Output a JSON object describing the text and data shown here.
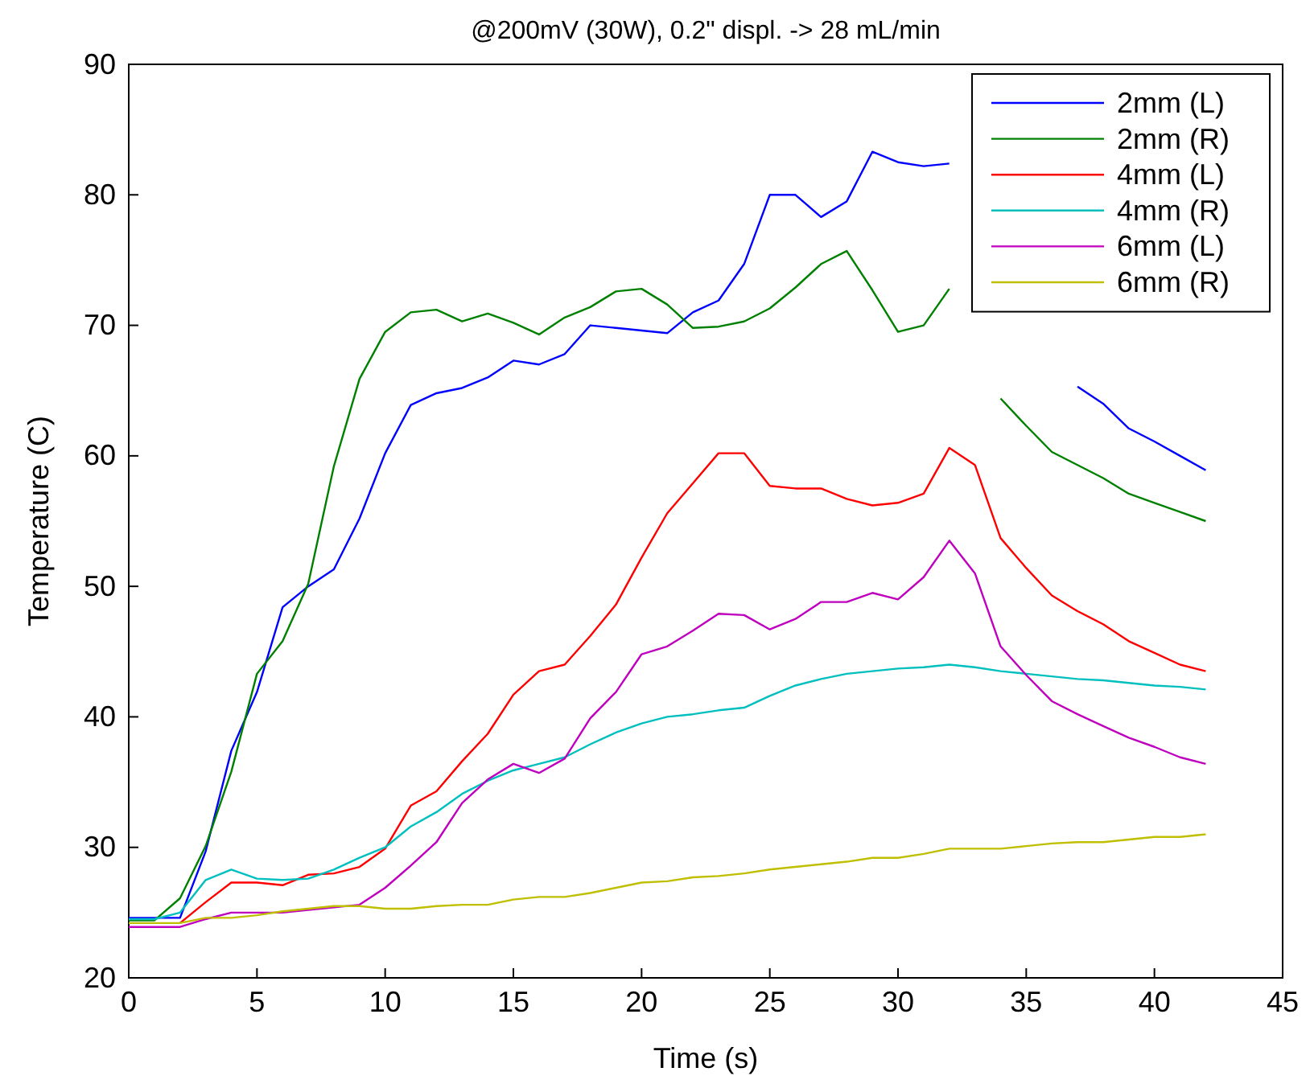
{
  "chart_data": {
    "type": "line",
    "title": "@200mV (30W), 0.2\" displ. -> 28 mL/min",
    "xlabel": "Time (s)",
    "ylabel": "Temperature (C)",
    "x": [
      0,
      1,
      2,
      3,
      4,
      5,
      6,
      7,
      8,
      9,
      10,
      11,
      12,
      13,
      14,
      15,
      16,
      17,
      18,
      19,
      20,
      21,
      22,
      23,
      24,
      25,
      26,
      27,
      28,
      29,
      30,
      31,
      32,
      33,
      34,
      35,
      36,
      37,
      38,
      39,
      40,
      41,
      42
    ],
    "series": [
      {
        "name": "2mm (L)",
        "color": "#0000ff",
        "values": [
          24.6,
          24.6,
          24.6,
          29.7,
          37.4,
          41.9,
          48.4,
          50.0,
          51.3,
          55.2,
          60.2,
          63.9,
          64.8,
          65.2,
          66.0,
          67.3,
          67.0,
          67.8,
          70.0,
          69.8,
          69.6,
          69.4,
          71.0,
          71.9,
          74.7,
          80.0,
          80.0,
          78.3,
          79.5,
          83.3,
          82.5,
          82.2,
          82.4,
          null,
          null,
          null,
          null,
          65.3,
          64.0,
          62.1,
          61.1,
          60.0,
          58.9
        ]
      },
      {
        "name": "2mm (R)",
        "color": "#008000",
        "values": [
          24.4,
          24.4,
          26.1,
          30.1,
          35.8,
          43.3,
          45.8,
          50.2,
          59.2,
          65.9,
          69.5,
          71.0,
          71.2,
          70.3,
          70.9,
          70.2,
          69.3,
          70.6,
          71.4,
          72.6,
          72.8,
          71.6,
          69.8,
          69.9,
          70.3,
          71.3,
          72.9,
          74.7,
          75.7,
          72.7,
          69.5,
          70.0,
          72.8,
          null,
          64.4,
          62.3,
          60.3,
          59.3,
          58.3,
          57.1,
          56.4,
          55.7,
          55.0
        ]
      },
      {
        "name": "4mm (L)",
        "color": "#ff0000",
        "values": [
          null,
          null,
          24.2,
          25.8,
          27.3,
          27.3,
          27.1,
          27.9,
          28.0,
          28.5,
          29.9,
          33.2,
          34.3,
          36.6,
          38.7,
          41.7,
          43.5,
          44.0,
          46.2,
          48.6,
          52.2,
          55.6,
          57.9,
          60.2,
          60.2,
          57.7,
          57.5,
          57.5,
          56.7,
          56.2,
          56.4,
          57.1,
          60.6,
          59.3,
          53.7,
          51.4,
          49.3,
          48.1,
          47.1,
          45.8,
          44.9,
          44.0,
          43.5
        ]
      },
      {
        "name": "4mm (R)",
        "color": "#00bfbf",
        "values": [
          24.5,
          24.5,
          25.0,
          27.5,
          28.3,
          27.6,
          27.5,
          27.6,
          28.3,
          29.2,
          30.0,
          31.6,
          32.7,
          34.1,
          35.1,
          35.9,
          36.4,
          36.9,
          37.9,
          38.8,
          39.5,
          40.0,
          40.2,
          40.5,
          40.7,
          41.6,
          42.4,
          42.9,
          43.3,
          43.5,
          43.7,
          43.8,
          44.0,
          43.8,
          43.5,
          43.3,
          43.1,
          42.9,
          42.8,
          42.6,
          42.4,
          42.3,
          42.1
        ]
      },
      {
        "name": "6mm (L)",
        "color": "#bf00bf",
        "values": [
          23.9,
          23.9,
          23.9,
          24.5,
          25.0,
          25.0,
          25.0,
          25.2,
          25.4,
          25.6,
          26.9,
          28.6,
          30.4,
          33.4,
          35.2,
          36.4,
          35.7,
          36.8,
          39.9,
          41.9,
          44.8,
          45.4,
          46.6,
          47.9,
          47.8,
          46.7,
          47.5,
          48.8,
          48.8,
          49.5,
          49.0,
          50.7,
          53.5,
          51.0,
          45.4,
          43.2,
          41.2,
          40.2,
          39.3,
          38.4,
          37.7,
          36.9,
          36.4
        ]
      },
      {
        "name": "6mm (R)",
        "color": "#bfbf00",
        "values": [
          24.2,
          24.2,
          24.2,
          24.6,
          24.6,
          24.8,
          25.1,
          25.3,
          25.5,
          25.5,
          25.3,
          25.3,
          25.5,
          25.6,
          25.6,
          26.0,
          26.2,
          26.2,
          26.5,
          26.9,
          27.3,
          27.4,
          27.7,
          27.8,
          28.0,
          28.3,
          28.5,
          28.7,
          28.9,
          29.2,
          29.2,
          29.5,
          29.9,
          29.9,
          29.9,
          30.1,
          30.3,
          30.4,
          30.4,
          30.6,
          30.8,
          30.8,
          31.0
        ]
      }
    ],
    "xlim": [
      0,
      45
    ],
    "xticks": [
      0,
      5,
      10,
      15,
      20,
      25,
      30,
      35,
      40,
      45
    ],
    "ylim": [
      20,
      90
    ],
    "yticks": [
      20,
      30,
      40,
      50,
      60,
      70,
      80,
      90
    ],
    "legend": "top right",
    "grid": false
  }
}
